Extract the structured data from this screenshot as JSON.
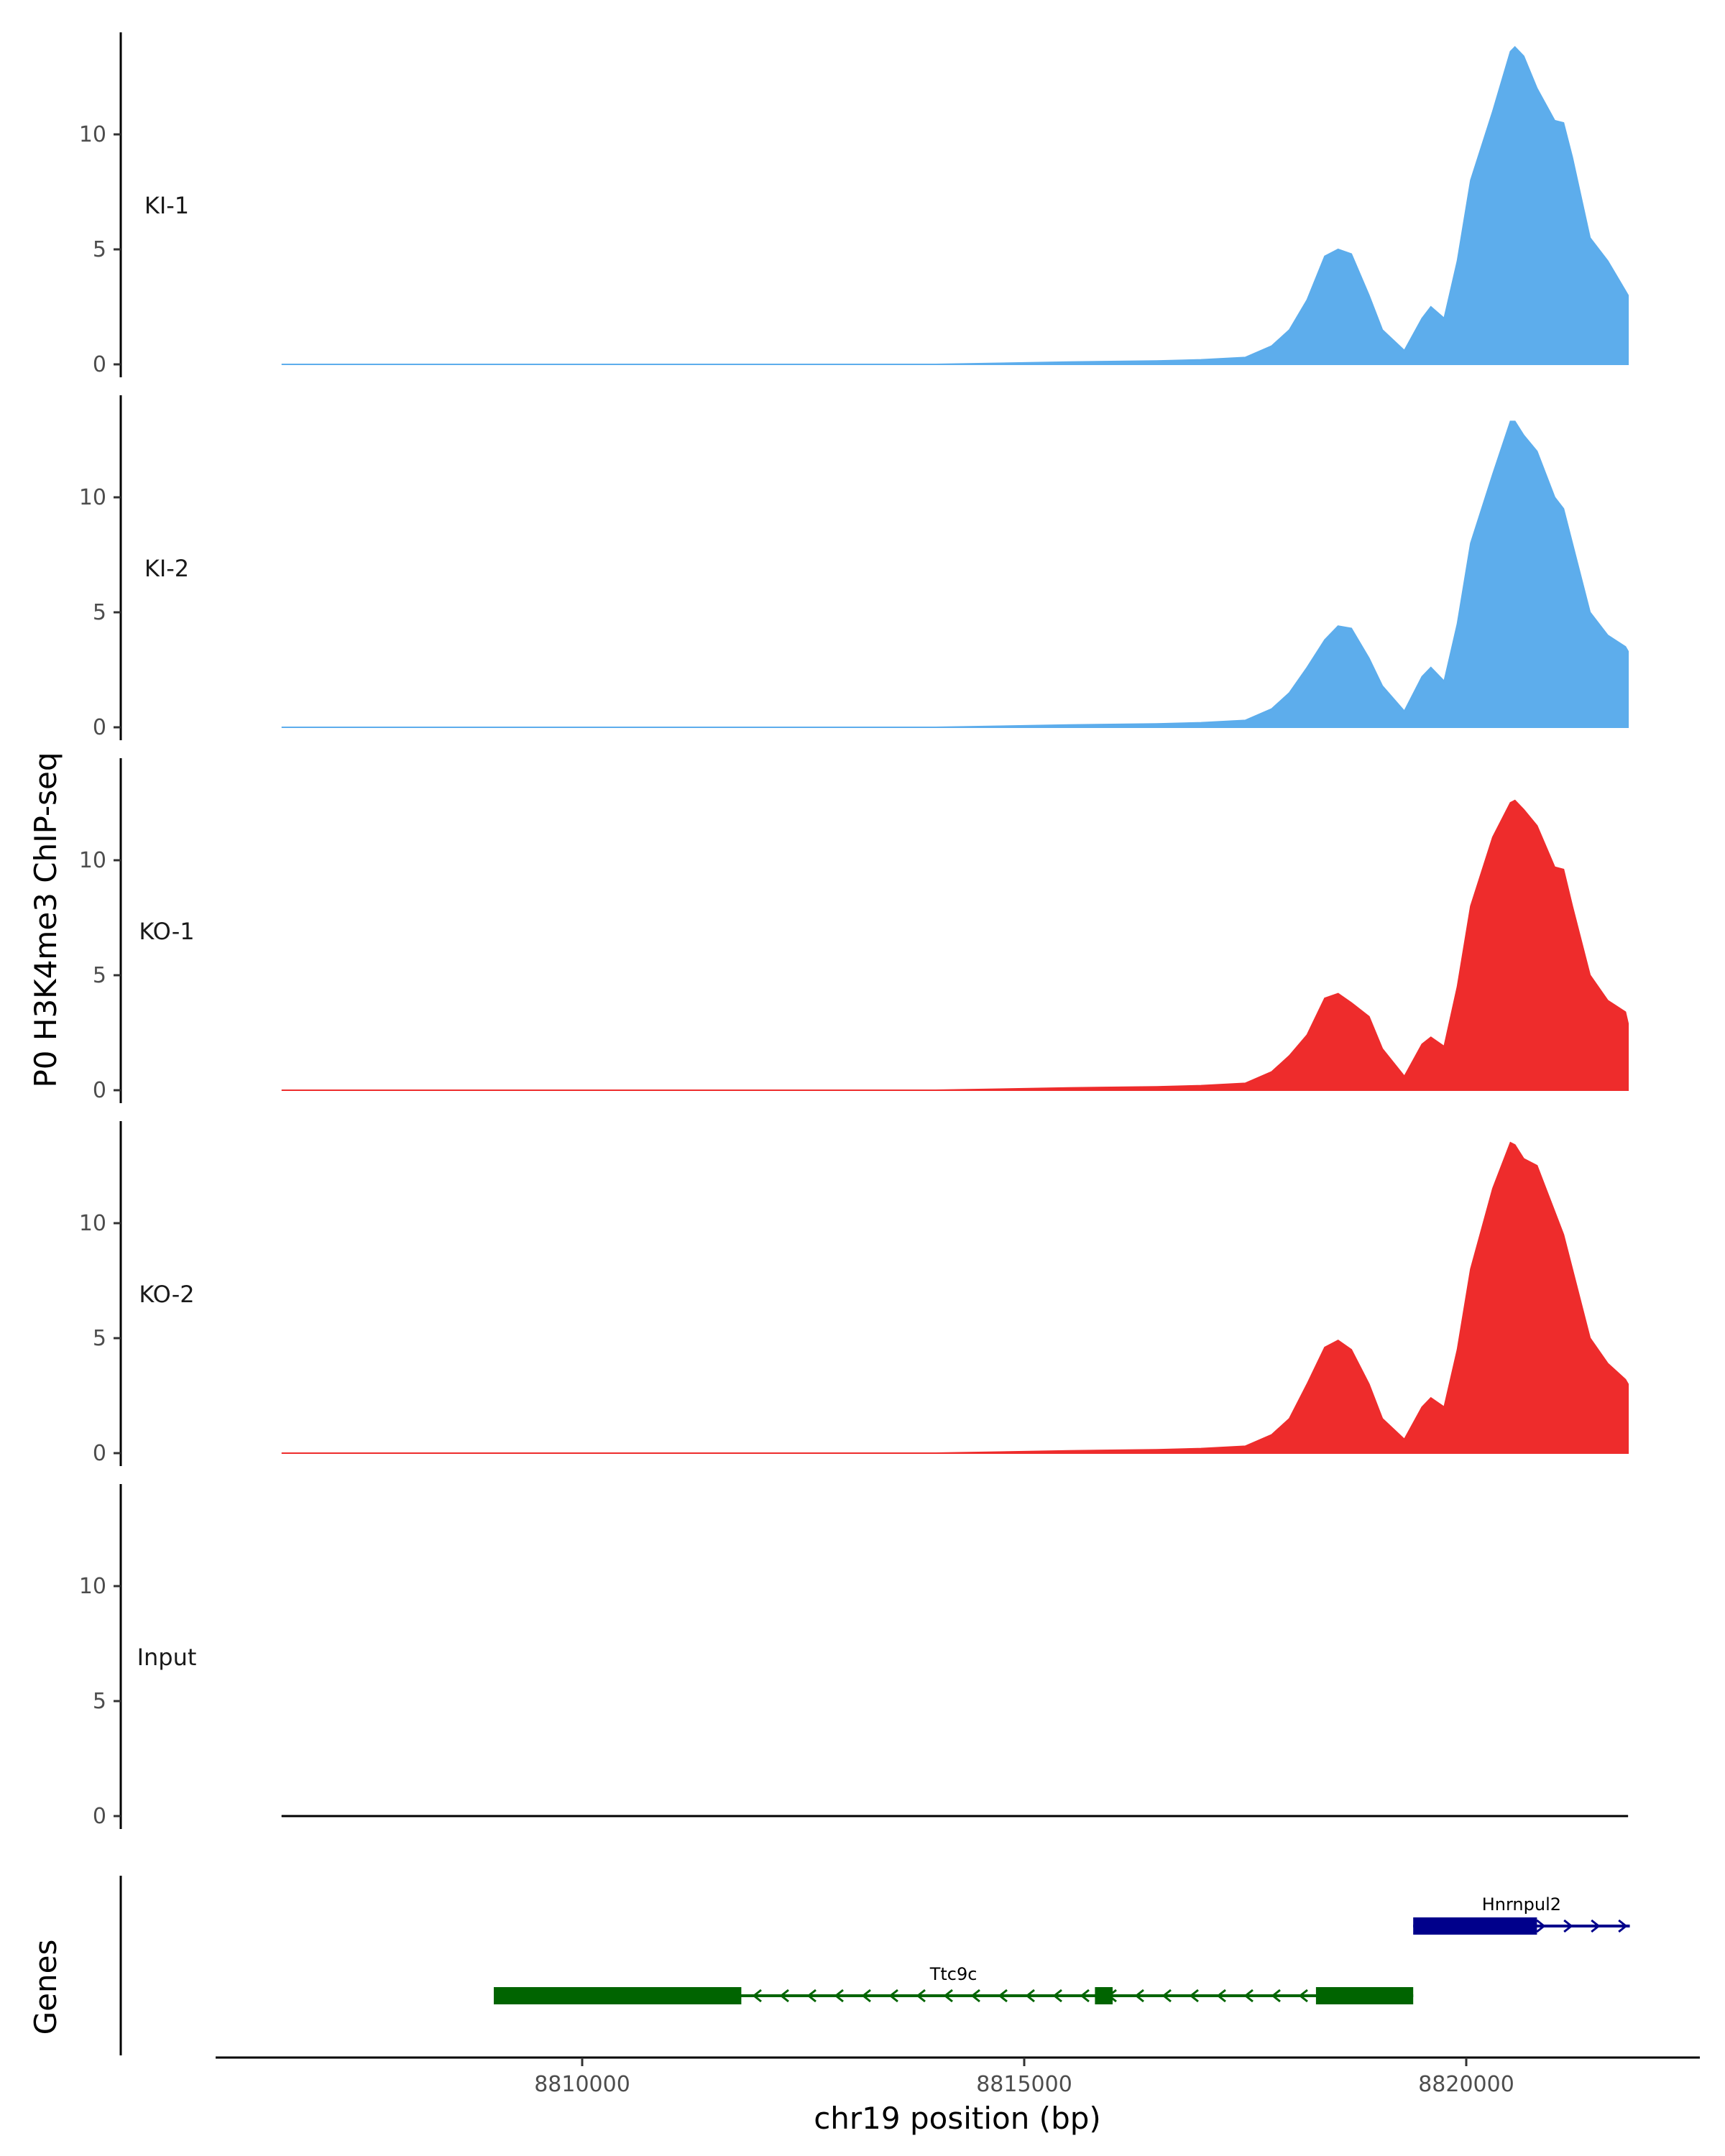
{
  "chart_data": {
    "type": "area",
    "ylabel": "P0 H3K4me3 ChIP-seq",
    "xlabel": "chr19 position (bp)",
    "genes_label": "Genes",
    "ylim": [
      0,
      14.5
    ],
    "yticks": [
      0,
      5,
      10
    ],
    "xlim": [
      8806000,
      8822600
    ],
    "xticks": [
      8810000,
      8815000,
      8820000
    ],
    "x_tick_labels": [
      "8810000",
      "8815000",
      "8820000"
    ],
    "x": [
      8806600,
      8808000,
      8810000,
      8812000,
      8814000,
      8815500,
      8816500,
      8817000,
      8817500,
      8817800,
      8818000,
      8818200,
      8818400,
      8818550,
      8818700,
      8818900,
      8819050,
      8819300,
      8819500,
      8819600,
      8819750,
      8819900,
      8820050,
      8820300,
      8820500,
      8820550,
      8820650,
      8820800,
      8821000,
      8821100,
      8821200,
      8821400,
      8821600,
      8821800,
      8821830
    ],
    "series": [
      {
        "name": "KI-1",
        "color": "#5DADEC",
        "values": [
          0,
          0,
          0,
          0,
          0,
          0.1,
          0.15,
          0.2,
          0.3,
          0.8,
          1.5,
          2.8,
          4.7,
          5.0,
          4.8,
          3.0,
          1.5,
          0.6,
          2.0,
          2.5,
          2.0,
          4.5,
          8.0,
          11.0,
          13.6,
          13.8,
          13.4,
          12.0,
          10.6,
          10.5,
          9.0,
          5.5,
          4.5,
          3.2,
          3.0
        ]
      },
      {
        "name": "KI-2",
        "color": "#5DADEC",
        "values": [
          0,
          0,
          0,
          0,
          0,
          0.1,
          0.15,
          0.2,
          0.3,
          0.8,
          1.5,
          2.6,
          3.8,
          4.4,
          4.3,
          3.0,
          1.8,
          0.7,
          2.2,
          2.6,
          2.0,
          4.5,
          8.0,
          11.0,
          13.3,
          13.3,
          12.7,
          12.0,
          10.0,
          9.5,
          8.0,
          5.0,
          4.0,
          3.5,
          3.3
        ]
      },
      {
        "name": "KO-1",
        "color": "#EE2C2C",
        "values": [
          0,
          0,
          0,
          0,
          0,
          0.1,
          0.15,
          0.2,
          0.3,
          0.8,
          1.5,
          2.4,
          4.0,
          4.2,
          3.8,
          3.2,
          1.8,
          0.6,
          2.0,
          2.3,
          1.9,
          4.5,
          8.0,
          11.0,
          12.5,
          12.6,
          12.2,
          11.5,
          9.7,
          9.6,
          8.0,
          5.0,
          3.9,
          3.4,
          2.9
        ]
      },
      {
        "name": "KO-2",
        "color": "#EE2C2C",
        "values": [
          0,
          0,
          0,
          0,
          0,
          0.1,
          0.15,
          0.2,
          0.3,
          0.8,
          1.5,
          3.0,
          4.6,
          4.9,
          4.5,
          3.0,
          1.5,
          0.6,
          2.0,
          2.4,
          2.0,
          4.5,
          8.0,
          11.5,
          13.5,
          13.4,
          12.8,
          12.5,
          10.5,
          9.5,
          8.0,
          5.0,
          3.9,
          3.2,
          3.0
        ]
      },
      {
        "name": "Input",
        "color": "#000000",
        "values": [
          0,
          0,
          0,
          0,
          0,
          0,
          0,
          0,
          0,
          0,
          0,
          0,
          0,
          0,
          0,
          0,
          0,
          0,
          0,
          0,
          0,
          0,
          0,
          0,
          0,
          0,
          0,
          0,
          0,
          0,
          0,
          0,
          0,
          0,
          0
        ]
      }
    ],
    "genes": [
      {
        "name": "Hnrnpul2",
        "strand": "+",
        "color": "#00008B",
        "start": 8819400,
        "end": 8821850,
        "thick": [
          [
            8819400,
            8820800
          ]
        ],
        "row": 1
      },
      {
        "name": "Ttc9c",
        "strand": "-",
        "color": "#006400",
        "start": 8809000,
        "end": 8819400,
        "thick": [
          [
            8809000,
            8811800
          ],
          [
            8815800,
            8816000
          ],
          [
            8818300,
            8819400
          ]
        ],
        "row": 2
      }
    ]
  }
}
